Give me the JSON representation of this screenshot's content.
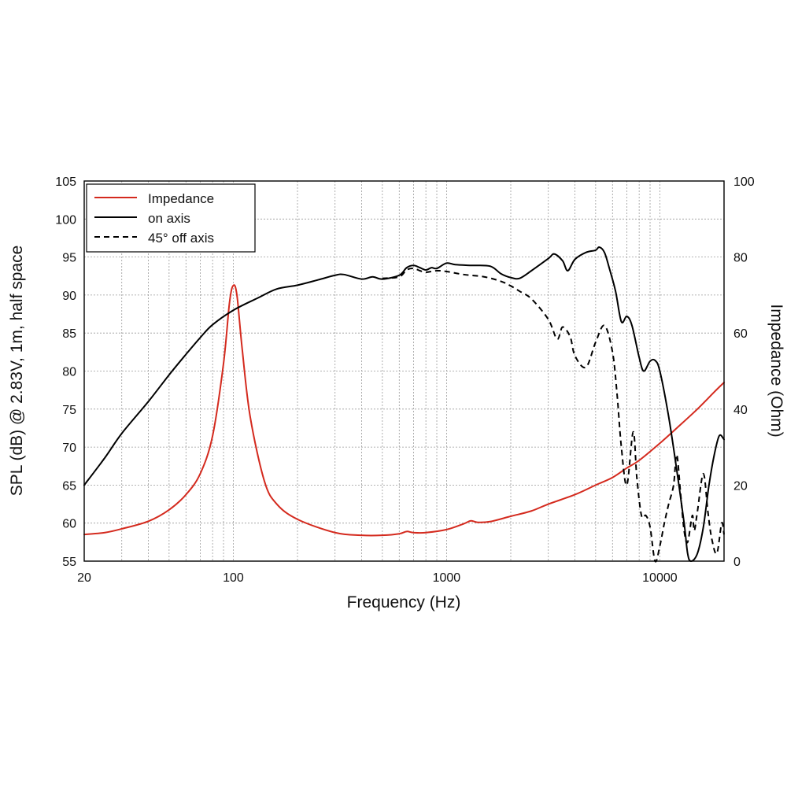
{
  "chart_data": {
    "type": "line",
    "title": "",
    "xlabel": "Frequency (Hz)",
    "ylabel_left": "SPL (dB) @ 2.83V, 1m, half space",
    "ylabel_right": "Impedance (Ohm)",
    "xscale": "log",
    "xlim": [
      20,
      20000
    ],
    "ylim_left": [
      55,
      105
    ],
    "ylim_right": [
      0,
      100
    ],
    "x_tick_labels": [
      {
        "value": 20,
        "label": "20"
      },
      {
        "value": 100,
        "label": "100"
      },
      {
        "value": 1000,
        "label": "1000"
      },
      {
        "value": 10000,
        "label": "10000"
      }
    ],
    "y_left_ticks": [
      55,
      60,
      65,
      70,
      75,
      80,
      85,
      90,
      95,
      100,
      105
    ],
    "y_right_ticks": [
      0,
      20,
      40,
      60,
      80,
      100
    ],
    "grid": true,
    "legend_position": "top-left",
    "colors": {
      "impedance": "#d42a1e",
      "on_axis": "#000000",
      "off_axis": "#000000",
      "grid": "#9a9a9a"
    },
    "series": [
      {
        "name": "Impedance",
        "axis": "right",
        "style": "solid",
        "color": "#d42a1e",
        "points": [
          [
            20,
            7
          ],
          [
            25,
            7.5
          ],
          [
            30,
            8.5
          ],
          [
            40,
            10.5
          ],
          [
            50,
            13.5
          ],
          [
            60,
            17.5
          ],
          [
            70,
            23
          ],
          [
            80,
            33
          ],
          [
            90,
            52
          ],
          [
            96,
            68
          ],
          [
            100,
            72.5
          ],
          [
            104,
            70
          ],
          [
            110,
            56
          ],
          [
            120,
            38
          ],
          [
            140,
            21
          ],
          [
            160,
            15
          ],
          [
            200,
            11
          ],
          [
            300,
            7.5
          ],
          [
            400,
            6.8
          ],
          [
            500,
            6.8
          ],
          [
            600,
            7.2
          ],
          [
            650,
            7.8
          ],
          [
            700,
            7.5
          ],
          [
            800,
            7.5
          ],
          [
            1000,
            8.3
          ],
          [
            1200,
            9.8
          ],
          [
            1300,
            10.6
          ],
          [
            1400,
            10.2
          ],
          [
            1600,
            10.4
          ],
          [
            2000,
            11.8
          ],
          [
            2500,
            13.2
          ],
          [
            3000,
            15
          ],
          [
            4000,
            17.5
          ],
          [
            5000,
            20
          ],
          [
            6000,
            22
          ],
          [
            7000,
            24.5
          ],
          [
            8000,
            26.5
          ],
          [
            10000,
            31
          ],
          [
            12000,
            35
          ],
          [
            15000,
            40
          ],
          [
            18000,
            44.5
          ],
          [
            20000,
            47
          ]
        ]
      },
      {
        "name": "on axis",
        "axis": "left",
        "style": "solid",
        "color": "#000000",
        "points": [
          [
            20,
            65
          ],
          [
            25,
            68.6
          ],
          [
            30,
            71.8
          ],
          [
            40,
            76
          ],
          [
            50,
            79.5
          ],
          [
            60,
            82.2
          ],
          [
            70,
            84.4
          ],
          [
            80,
            86.1
          ],
          [
            100,
            88
          ],
          [
            130,
            89.6
          ],
          [
            160,
            90.8
          ],
          [
            200,
            91.3
          ],
          [
            250,
            92
          ],
          [
            300,
            92.6
          ],
          [
            330,
            92.7
          ],
          [
            400,
            92.1
          ],
          [
            450,
            92.4
          ],
          [
            500,
            92.1
          ],
          [
            600,
            92.6
          ],
          [
            650,
            93.6
          ],
          [
            700,
            93.9
          ],
          [
            750,
            93.6
          ],
          [
            800,
            93.3
          ],
          [
            850,
            93.6
          ],
          [
            900,
            93.5
          ],
          [
            1000,
            94.2
          ],
          [
            1100,
            94
          ],
          [
            1300,
            93.9
          ],
          [
            1600,
            93.8
          ],
          [
            1800,
            92.8
          ],
          [
            2000,
            92.3
          ],
          [
            2200,
            92.2
          ],
          [
            2500,
            93.2
          ],
          [
            3000,
            94.8
          ],
          [
            3200,
            95.4
          ],
          [
            3500,
            94.5
          ],
          [
            3700,
            93.2
          ],
          [
            4000,
            94.7
          ],
          [
            4500,
            95.6
          ],
          [
            5000,
            95.9
          ],
          [
            5200,
            96.3
          ],
          [
            5500,
            95.6
          ],
          [
            5800,
            93.5
          ],
          [
            6200,
            90.5
          ],
          [
            6600,
            86.5
          ],
          [
            7000,
            87.2
          ],
          [
            7400,
            86
          ],
          [
            8000,
            81.8
          ],
          [
            8400,
            80
          ],
          [
            9000,
            81.3
          ],
          [
            9500,
            81.4
          ],
          [
            10000,
            80
          ],
          [
            11000,
            74
          ],
          [
            12000,
            67
          ],
          [
            13000,
            60
          ],
          [
            13500,
            56
          ],
          [
            14000,
            55
          ],
          [
            15000,
            56
          ],
          [
            16000,
            59.5
          ],
          [
            17000,
            65
          ],
          [
            18000,
            69
          ],
          [
            19000,
            71.5
          ],
          [
            20000,
            71
          ]
        ]
      },
      {
        "name": "45° off axis",
        "axis": "left",
        "style": "dashed",
        "color": "#000000",
        "points": [
          [
            500,
            92.2
          ],
          [
            600,
            92.4
          ],
          [
            650,
            93.3
          ],
          [
            700,
            93.5
          ],
          [
            750,
            93.2
          ],
          [
            800,
            93
          ],
          [
            900,
            93.2
          ],
          [
            1000,
            93.1
          ],
          [
            1200,
            92.7
          ],
          [
            1500,
            92.4
          ],
          [
            1800,
            91.8
          ],
          [
            2000,
            91.2
          ],
          [
            2200,
            90.5
          ],
          [
            2500,
            89.5
          ],
          [
            3000,
            86.8
          ],
          [
            3300,
            84.2
          ],
          [
            3500,
            85.8
          ],
          [
            3800,
            84.5
          ],
          [
            4000,
            82
          ],
          [
            4500,
            80.5
          ],
          [
            5000,
            83.8
          ],
          [
            5500,
            86
          ],
          [
            6000,
            82.5
          ],
          [
            6300,
            77
          ],
          [
            6600,
            70
          ],
          [
            7000,
            65
          ],
          [
            7500,
            72
          ],
          [
            7800,
            66
          ],
          [
            8200,
            61
          ],
          [
            8600,
            61
          ],
          [
            9000,
            59.5
          ],
          [
            9500,
            55
          ],
          [
            10000,
            57
          ],
          [
            10500,
            60
          ],
          [
            11000,
            62.5
          ],
          [
            11600,
            65
          ],
          [
            12000,
            69
          ],
          [
            12500,
            64
          ],
          [
            13000,
            59
          ],
          [
            13500,
            57.5
          ],
          [
            14200,
            61
          ],
          [
            14500,
            59
          ],
          [
            15000,
            61.5
          ],
          [
            16000,
            66.5
          ],
          [
            16800,
            61.5
          ],
          [
            17500,
            58
          ],
          [
            18500,
            56
          ],
          [
            19500,
            60
          ],
          [
            20000,
            58.5
          ]
        ]
      }
    ]
  }
}
